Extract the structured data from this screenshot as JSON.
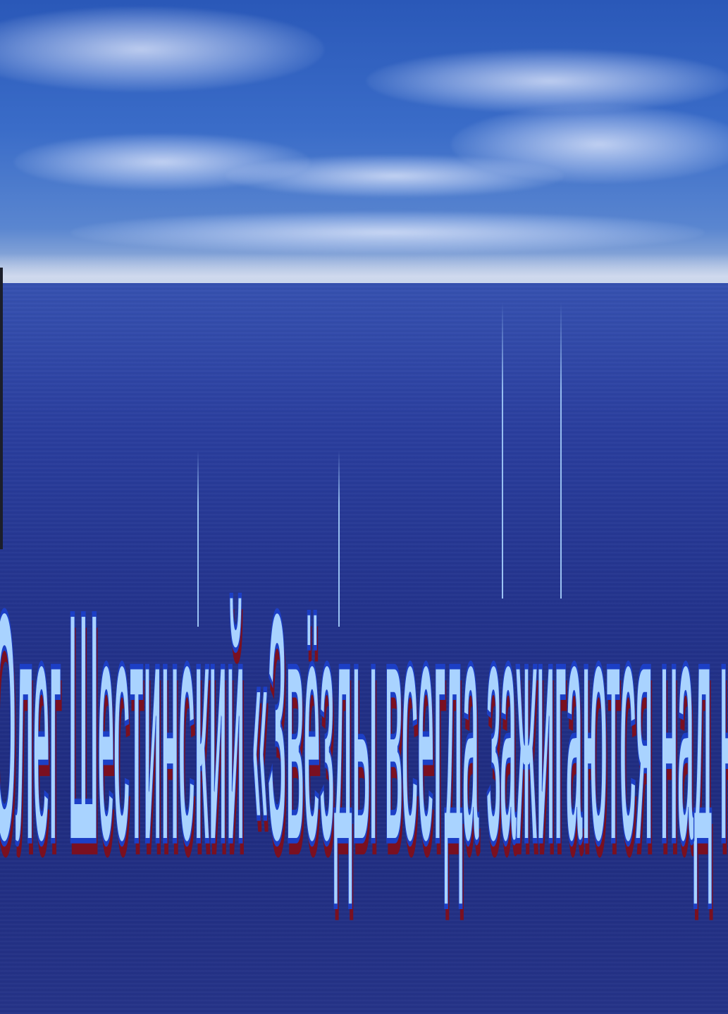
{
  "slide": {
    "caption": "Олег Шестинский «Звёзды всегда зажигаются над нами» — Стихи о Родине"
  },
  "colors": {
    "text_fill": "#a9d3ff",
    "text_outline": "#1c3fc6",
    "text_shadow": "#7a1020",
    "sky": "#3a6cc8",
    "sea": "#23338c"
  }
}
